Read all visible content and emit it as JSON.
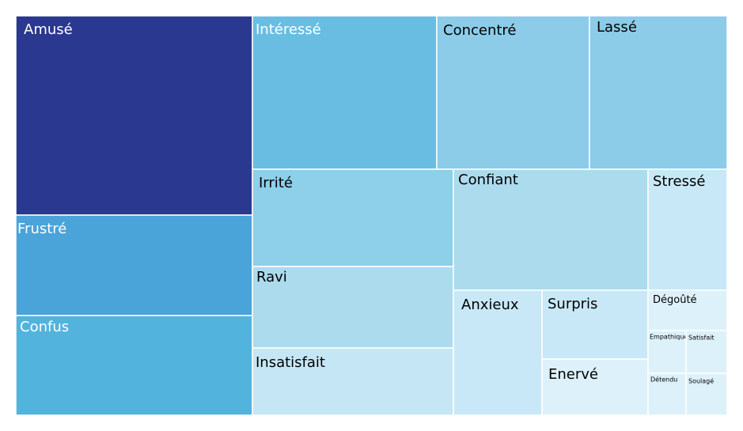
{
  "chart_data": {
    "type": "treemap",
    "title": "",
    "items": [
      {
        "label": "Amusé",
        "value": 75.5,
        "color": "#2a3890",
        "text_color": "#ffffff"
      },
      {
        "label": "Frustré",
        "value": 37.9,
        "color": "#4aa3d9",
        "text_color": "#ffffff"
      },
      {
        "label": "Confus",
        "value": 37.6,
        "color": "#52b3dd",
        "text_color": "#ffffff"
      },
      {
        "label": "Intéressé",
        "value": 45.3,
        "color": "#69bde2",
        "text_color": "#ffffff"
      },
      {
        "label": "Concentré",
        "value": 37.6,
        "color": "#8ccce8",
        "text_color": "#000000"
      },
      {
        "label": "Lassé",
        "value": 34.7,
        "color": "#8ccce8",
        "text_color": "#000000"
      },
      {
        "label": "Irrité",
        "value": 30.6,
        "color": "#8ecfe9",
        "text_color": "#000000"
      },
      {
        "label": "Ravi",
        "value": 25.8,
        "color": "#acdbee",
        "text_color": "#000000"
      },
      {
        "label": "Insatisfait",
        "value": 21.5,
        "color": "#c5e6f4",
        "text_color": "#000000"
      },
      {
        "label": "Confiant",
        "value": 37.3,
        "color": "#acdbee",
        "text_color": "#000000"
      },
      {
        "label": "Stressé",
        "value": 15.5,
        "color": "#c8e8f7",
        "text_color": "#000000"
      },
      {
        "label": "Anxieux",
        "value": 19.4,
        "color": "#c8e8f7",
        "text_color": "#000000"
      },
      {
        "label": "Surpris",
        "value": 11.7,
        "color": "#c8e8f7",
        "text_color": "#000000"
      },
      {
        "label": "Enervé",
        "value": 9.8,
        "color": "#ddf1fa",
        "text_color": "#000000"
      },
      {
        "label": "Dégoûté",
        "value": 5.0,
        "color": "#ddf1fa",
        "text_color": "#000000"
      },
      {
        "label": "Empathique",
        "value": 2.6,
        "color": "#ddf1fa",
        "text_color": "#000000"
      },
      {
        "label": "Satisfait",
        "value": 2.6,
        "color": "#ddf1fa",
        "text_color": "#000000"
      },
      {
        "label": "Détendu",
        "value": 2.5,
        "color": "#ddf1fa",
        "text_color": "#000000"
      },
      {
        "label": "Soulagé",
        "value": 2.5,
        "color": "#ddf1fa",
        "text_color": "#000000"
      }
    ]
  }
}
